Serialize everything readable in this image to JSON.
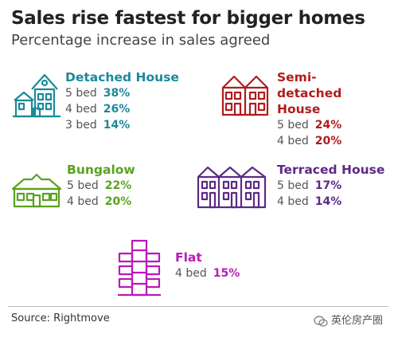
{
  "title": "Sales rise fastest for bigger homes",
  "subtitle": "Percentage increase in sales agreed",
  "source": "Source: Rightmove",
  "watermark": "英伦房产圈",
  "colors": {
    "detached": "#1a8a9a",
    "semi": "#b01c1c",
    "bungalow": "#5aa21e",
    "terraced": "#5b2a86",
    "flat": "#b81ab8"
  },
  "icons": [
    "detached-house-icon",
    "semi-detached-house-icon",
    "bungalow-icon",
    "terraced-house-icon",
    "flat-icon",
    "wechat-icon"
  ],
  "chart_data": {
    "type": "table",
    "title": "Sales rise fastest for bigger homes",
    "subtitle": "Percentage increase in sales agreed",
    "categories": [
      {
        "name": "Detached House",
        "rows": [
          {
            "label": "5 bed",
            "value": "38%"
          },
          {
            "label": "4 bed",
            "value": "26%"
          },
          {
            "label": "3 bed",
            "value": "14%"
          }
        ]
      },
      {
        "name": "Semi-detached House",
        "rows": [
          {
            "label": "5 bed",
            "value": "24%"
          },
          {
            "label": "4 bed",
            "value": "20%"
          }
        ]
      },
      {
        "name": "Bungalow",
        "rows": [
          {
            "label": "5 bed",
            "value": "22%"
          },
          {
            "label": "4 bed",
            "value": "20%"
          }
        ]
      },
      {
        "name": "Terraced House",
        "rows": [
          {
            "label": "5 bed",
            "value": "17%"
          },
          {
            "label": "4 bed",
            "value": "14%"
          }
        ]
      },
      {
        "name": "Flat",
        "rows": [
          {
            "label": "4 bed",
            "value": "15%"
          }
        ]
      }
    ]
  }
}
